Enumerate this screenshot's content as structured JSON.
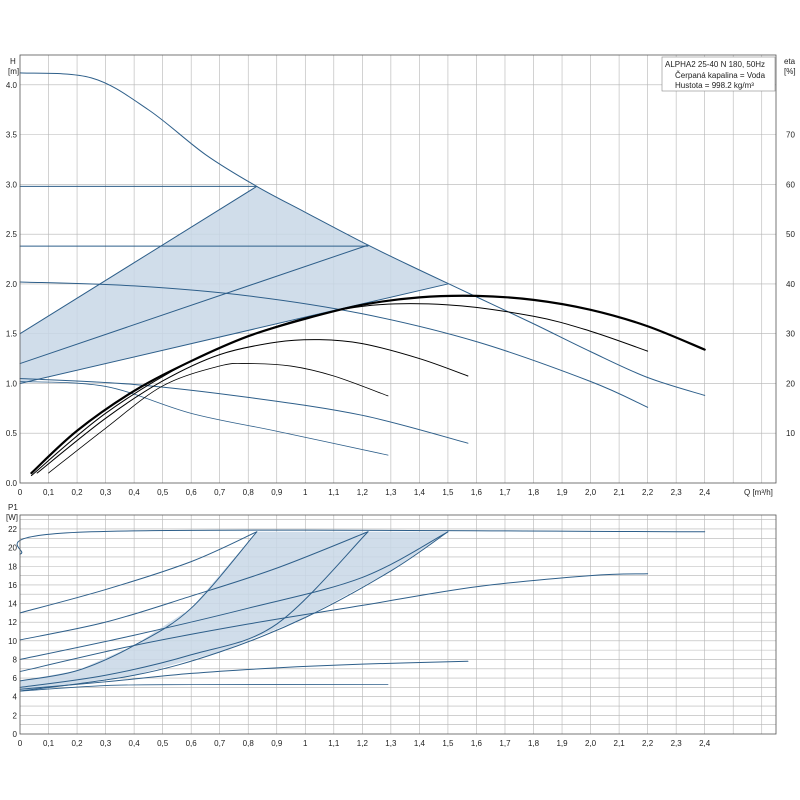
{
  "chart_data": [
    {
      "type": "line",
      "panel": "head",
      "title": "",
      "xlabel": "Q [m³/h]",
      "ylabel_unit": "H",
      "ylabel_sub": "[m]",
      "y2label_unit": "eta",
      "y2label_sub": "[%]",
      "legend_lines": [
        "ALPHA2 25-40 N 180, 50Hz",
        "Čerpaná kapalina = Voda",
        "Hustota = 998.2 kg/m³"
      ],
      "xlim": [
        0,
        2.65
      ],
      "ylim": [
        0,
        4.3
      ],
      "y2lim": [
        0,
        86
      ],
      "grid": true,
      "x_ticks": [
        "0",
        "0,1",
        "0,2",
        "0,3",
        "0,4",
        "0,5",
        "0,6",
        "0,7",
        "0,8",
        "0,9",
        "1",
        "1,1",
        "1,2",
        "1,3",
        "1,4",
        "1,5",
        "1,6",
        "1,7",
        "1,8",
        "1,9",
        "2,0",
        "2,1",
        "2,2",
        "2,3",
        "2,4"
      ],
      "y_ticks": [
        "0.0",
        "0.5",
        "1.0",
        "1.5",
        "2.0",
        "2.5",
        "3.0",
        "3.5",
        "4.0"
      ],
      "y2_ticks": [
        "10",
        "20",
        "30",
        "40",
        "50",
        "60",
        "70"
      ],
      "bands": [
        {
          "color": "#c8d7e6",
          "points": [
            [
              0,
              1.5
            ],
            [
              0.83,
              2.98
            ],
            [
              1.22,
              2.39
            ],
            [
              1.5,
              2.0
            ],
            [
              0,
              1.0
            ]
          ]
        }
      ],
      "series": [
        {
          "role": "head",
          "color": "#2e5f8a",
          "width": 1.0,
          "points": [
            [
              0,
              4.12
            ],
            [
              0.25,
              4.07
            ],
            [
              0.45,
              3.75
            ],
            [
              0.65,
              3.3
            ],
            [
              0.83,
              2.98
            ],
            [
              1.0,
              2.72
            ],
            [
              1.22,
              2.39
            ],
            [
              1.4,
              2.14
            ],
            [
              1.6,
              1.87
            ],
            [
              1.8,
              1.6
            ],
            [
              2.0,
              1.32
            ],
            [
              2.2,
              1.06
            ],
            [
              2.4,
              0.88
            ]
          ]
        },
        {
          "role": "head",
          "color": "#2e5f8a",
          "width": 1.0,
          "points": [
            [
              0,
              2.98
            ],
            [
              0.83,
              2.98
            ]
          ]
        },
        {
          "role": "head",
          "color": "#2e5f8a",
          "width": 1.0,
          "points": [
            [
              0,
              2.38
            ],
            [
              1.22,
              2.38
            ]
          ]
        },
        {
          "role": "head",
          "color": "#2e5f8a",
          "width": 1.0,
          "points": [
            [
              0,
              1.5
            ],
            [
              0.83,
              2.98
            ]
          ]
        },
        {
          "role": "head",
          "color": "#2e5f8a",
          "width": 1.0,
          "points": [
            [
              0,
              1.2
            ],
            [
              1.22,
              2.39
            ]
          ]
        },
        {
          "role": "head",
          "color": "#2e5f8a",
          "width": 1.0,
          "points": [
            [
              0,
              1.0
            ],
            [
              1.5,
              2.0
            ]
          ]
        },
        {
          "role": "head",
          "color": "#2e5f8a",
          "width": 1.0,
          "points": [
            [
              0,
              2.02
            ],
            [
              0.4,
              1.98
            ],
            [
              0.8,
              1.88
            ],
            [
              1.2,
              1.7
            ],
            [
              1.6,
              1.42
            ],
            [
              2.0,
              1.02
            ],
            [
              2.2,
              0.76
            ]
          ]
        },
        {
          "role": "head",
          "color": "#2e5f8a",
          "width": 1.0,
          "points": [
            [
              0,
              1.05
            ],
            [
              0.4,
              0.99
            ],
            [
              0.8,
              0.86
            ],
            [
              1.2,
              0.68
            ],
            [
              1.57,
              0.4
            ]
          ]
        },
        {
          "role": "head",
          "color": "#2e5f8a",
          "width": 0.8,
          "points": [
            [
              0,
              1.02
            ],
            [
              0.3,
              0.97
            ],
            [
              0.6,
              0.7
            ],
            [
              0.9,
              0.52
            ],
            [
              1.29,
              0.28
            ]
          ]
        },
        {
          "role": "eta",
          "color": "#000000",
          "width": 2.2,
          "points": [
            [
              0.04,
              2
            ],
            [
              0.2,
              10.5
            ],
            [
              0.4,
              18.5
            ],
            [
              0.6,
              24.5
            ],
            [
              0.8,
              29.5
            ],
            [
              1.0,
              33
            ],
            [
              1.2,
              35.8
            ],
            [
              1.4,
              37.3
            ],
            [
              1.6,
              37.6
            ],
            [
              1.8,
              36.8
            ],
            [
              2.0,
              34.8
            ],
            [
              2.2,
              31.5
            ],
            [
              2.4,
              26.8
            ]
          ]
        },
        {
          "role": "eta",
          "color": "#000000",
          "width": 1.0,
          "points": [
            [
              0.04,
              1.5
            ],
            [
              0.3,
              14
            ],
            [
              0.6,
              24.5
            ],
            [
              0.9,
              31.5
            ],
            [
              1.2,
              35.5
            ],
            [
              1.5,
              35.8
            ],
            [
              1.8,
              33.5
            ],
            [
              2.0,
              30.5
            ],
            [
              2.2,
              26.5
            ]
          ]
        },
        {
          "role": "eta",
          "color": "#000000",
          "width": 1.0,
          "points": [
            [
              0.06,
              2
            ],
            [
              0.3,
              13
            ],
            [
              0.5,
              20.5
            ],
            [
              0.7,
              25.8
            ],
            [
              0.9,
              28.3
            ],
            [
              1.05,
              28.8
            ],
            [
              1.2,
              28
            ],
            [
              1.4,
              25
            ],
            [
              1.57,
              21.5
            ]
          ]
        },
        {
          "role": "eta",
          "color": "#000000",
          "width": 0.8,
          "points": [
            [
              0.1,
              2
            ],
            [
              0.3,
              11
            ],
            [
              0.5,
              19.5
            ],
            [
              0.7,
              23.5
            ],
            [
              0.8,
              24
            ],
            [
              0.95,
              23.5
            ],
            [
              1.1,
              21.5
            ],
            [
              1.29,
              17.5
            ]
          ]
        }
      ]
    },
    {
      "type": "line",
      "panel": "power",
      "title": "",
      "ylabel_unit": "P1",
      "ylabel_sub": "[W]",
      "xlim": [
        0,
        2.65
      ],
      "ylim": [
        0,
        23.5
      ],
      "grid": true,
      "y_ticks": [
        "0",
        "2",
        "4",
        "6",
        "8",
        "10",
        "12",
        "14",
        "16",
        "18",
        "20",
        "22"
      ],
      "bands": [
        {
          "color": "#c8d7e6",
          "points": [
            [
              0,
              5.7
            ],
            [
              0.2,
              6.8
            ],
            [
              0.4,
              9.5
            ],
            [
              0.6,
              13.5
            ],
            [
              0.83,
              21.7
            ],
            [
              1.22,
              21.7
            ],
            [
              1.5,
              21.7
            ],
            [
              1.3,
              17.5
            ],
            [
              1.0,
              12.5
            ],
            [
              0.7,
              8.8
            ],
            [
              0.4,
              6.3
            ],
            [
              0,
              4.6
            ]
          ]
        }
      ],
      "series": [
        {
          "role": "power",
          "color": "#2e5f8a",
          "width": 1.0,
          "points": [
            [
              0,
              19.3
            ],
            [
              0.25,
              21.7
            ],
            [
              2.4,
              21.7
            ]
          ]
        },
        {
          "role": "power",
          "color": "#2e5f8a",
          "width": 1.0,
          "points": [
            [
              0,
              13.0
            ],
            [
              0.3,
              15.5
            ],
            [
              0.6,
              18.5
            ],
            [
              0.83,
              21.7
            ]
          ]
        },
        {
          "role": "power",
          "color": "#2e5f8a",
          "width": 1.0,
          "points": [
            [
              0,
              10.1
            ],
            [
              0.3,
              12.0
            ],
            [
              0.6,
              14.8
            ],
            [
              0.9,
              17.8
            ],
            [
              1.22,
              21.7
            ]
          ]
        },
        {
          "role": "power",
          "color": "#2e5f8a",
          "width": 1.0,
          "points": [
            [
              0,
              8.0
            ],
            [
              0.4,
              10.6
            ],
            [
              0.8,
              13.5
            ],
            [
              1.2,
              16.8
            ],
            [
              1.5,
              21.7
            ]
          ]
        },
        {
          "role": "power",
          "color": "#2e5f8a",
          "width": 1.0,
          "points": [
            [
              0,
              5.7
            ],
            [
              0.2,
              6.8
            ],
            [
              0.4,
              9.5
            ],
            [
              0.6,
              13.5
            ],
            [
              0.83,
              21.7
            ]
          ]
        },
        {
          "role": "power",
          "color": "#2e5f8a",
          "width": 1.0,
          "points": [
            [
              0,
              5.0
            ],
            [
              0.3,
              6.3
            ],
            [
              0.6,
              8.5
            ],
            [
              0.9,
              11.8
            ],
            [
              1.22,
              21.7
            ]
          ]
        },
        {
          "role": "power",
          "color": "#2e5f8a",
          "width": 1.0,
          "points": [
            [
              0,
              4.6
            ],
            [
              0.4,
              6.3
            ],
            [
              0.7,
              8.8
            ],
            [
              1.0,
              12.5
            ],
            [
              1.3,
              17.5
            ],
            [
              1.5,
              21.7
            ]
          ]
        },
        {
          "role": "power",
          "color": "#2e5f8a",
          "width": 1.0,
          "points": [
            [
              0,
              6.7
            ],
            [
              0.4,
              9.5
            ],
            [
              0.8,
              11.8
            ],
            [
              1.2,
              13.8
            ],
            [
              1.6,
              15.8
            ],
            [
              2.0,
              17.0
            ],
            [
              2.2,
              17.2
            ]
          ]
        },
        {
          "role": "power",
          "color": "#2e5f8a",
          "width": 1.0,
          "points": [
            [
              0,
              4.8
            ],
            [
              0.3,
              5.6
            ],
            [
              0.6,
              6.5
            ],
            [
              0.9,
              7.1
            ],
            [
              1.2,
              7.5
            ],
            [
              1.57,
              7.8
            ]
          ]
        },
        {
          "role": "power",
          "color": "#2e5f8a",
          "width": 0.8,
          "points": [
            [
              0,
              4.6
            ],
            [
              0.3,
              5.2
            ],
            [
              0.6,
              5.3
            ],
            [
              1.29,
              5.3
            ]
          ]
        }
      ]
    }
  ]
}
